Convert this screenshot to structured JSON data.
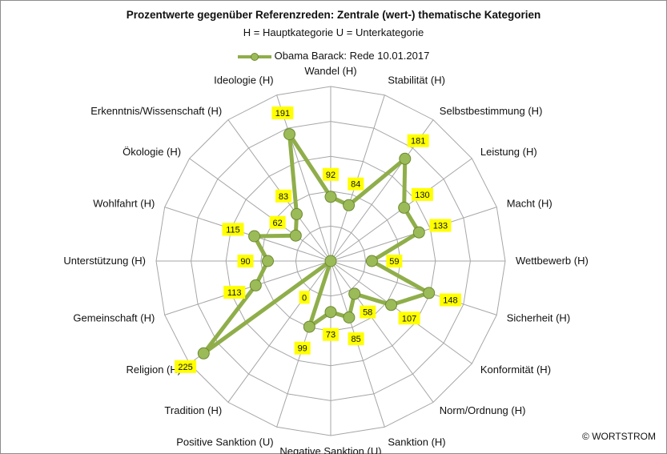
{
  "title": "Prozentwerte gegenüber Referenzreden: Zentrale (wert-) thematische Kategorien",
  "subtitle": "H = Hauptkategorie U = Unterkategorie",
  "copyright": "© WORTSTROM",
  "chart_data": {
    "type": "radar",
    "title": "Prozentwerte gegenüber Referenzreden: Zentrale (wert-) thematische Kategorien",
    "subtitle": "H = Hauptkategorie U = Unterkategorie",
    "categories": [
      "Wandel (H)",
      "Stabilität (H)",
      "Selbstbestimmung (H)",
      "Leistung (H)",
      "Macht (H)",
      "Wettbewerb (H)",
      "Sicherheit (H)",
      "Konformität (H)",
      "Norm/Ordnung (H)",
      "Sanktion (H)",
      "Negative Sanktion (U)",
      "Positive Sanktion (U)",
      "Tradition (H)",
      "Religion (H)",
      "Gemeinschaft (H)",
      "Unterstützung (H)",
      "Wohlfahrt (H)",
      "Ökologie (H)",
      "Erkenntnis/Wissenschaft (H)",
      "Ideologie (H)"
    ],
    "series": [
      {
        "name": "Obama Barack: Rede 10.01.2017",
        "values": [
          92,
          84,
          181,
          130,
          133,
          59,
          148,
          107,
          58,
          85,
          73,
          99,
          0,
          225,
          113,
          90,
          115,
          62,
          83,
          191
        ]
      }
    ],
    "r_range": [
      0,
      250
    ],
    "gridlines": true,
    "legend_position": "top",
    "colors": {
      "line": "#8fae4a",
      "marker": "#9bbb59",
      "label_bg": "#ffff00"
    }
  }
}
